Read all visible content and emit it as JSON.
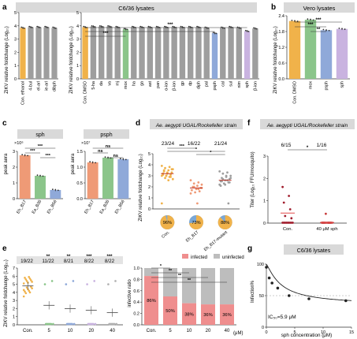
{
  "panels": {
    "a": {
      "letter": "a",
      "header": "C6/36 lysates",
      "ylabel": "ZIKV relative foldchange (Log₁₀)",
      "left": {
        "categories": [
          "Con. ethanol",
          "4-bul",
          "el-arl",
          "ie-arl",
          "dibph"
        ],
        "values": [
          3.85,
          3.9,
          3.9,
          3.9,
          3.85
        ],
        "colors": [
          "#f0b24a",
          "#9e9e9e",
          "#9e9e9e",
          "#9e9e9e",
          "#9e9e9e"
        ],
        "ylim": [
          0,
          5
        ],
        "yticks": [
          0,
          1,
          2,
          3,
          4,
          5
        ]
      },
      "right": {
        "categories": [
          "Con. DMSO",
          "5-ha",
          "da",
          "va",
          "mj",
          "mox",
          "ha",
          "ga",
          "ast",
          "pan",
          "α-ion",
          "β-ion",
          "gp",
          "dp",
          "diph",
          "pal",
          "psph",
          "cal",
          "sul",
          "nim",
          "sph",
          "β-ion"
        ],
        "values": [
          3.9,
          3.95,
          3.95,
          3.95,
          3.9,
          3.75,
          3.9,
          3.9,
          3.9,
          3.9,
          3.9,
          3.9,
          3.9,
          3.9,
          3.9,
          3.85,
          3.45,
          3.85,
          3.9,
          3.85,
          3.6,
          3.8
        ],
        "colors": [
          "#f0b24a",
          "#9e9e9e",
          "#9e9e9e",
          "#9e9e9e",
          "#9e9e9e",
          "#8bc58a",
          "#9e9e9e",
          "#9e9e9e",
          "#9e9e9e",
          "#9e9e9e",
          "#9e9e9e",
          "#9e9e9e",
          "#9e9e9e",
          "#9e9e9e",
          "#9e9e9e",
          "#9e9e9e",
          "#8fa9d9",
          "#9e9e9e",
          "#9e9e9e",
          "#9e9e9e",
          "#c9b3e0",
          "#9e9e9e"
        ],
        "ylim": [
          0,
          5
        ],
        "yticks": [
          0,
          1,
          2,
          3,
          4,
          5
        ],
        "sig": [
          "***",
          "***"
        ]
      }
    },
    "b": {
      "letter": "b",
      "header": "Vero lysates",
      "ylabel": "ZIKV relative foldchange (Log₁₀)",
      "categories": [
        "Con. DMSO",
        "mox",
        "psph",
        "sph"
      ],
      "values": [
        2.2,
        2.25,
        1.85,
        1.9
      ],
      "colors": [
        "#f0b24a",
        "#8bc58a",
        "#8fa9d9",
        "#c9b3e0"
      ],
      "ylim": [
        0,
        2.4
      ],
      "yticks": [
        0,
        0.6,
        1.2,
        1.8,
        2.4
      ],
      "sig": [
        "**",
        "***",
        "***"
      ]
    },
    "c": {
      "letter": "c",
      "left": {
        "title": "sph",
        "exponent": "×10⁶",
        "ylabel": "peak aera",
        "categories": [
          "Eh_B17",
          "Ea_B36",
          "Eh_B56"
        ],
        "values": [
          2.75,
          1.45,
          0.55
        ],
        "colors": [
          "#ef9a76",
          "#8bc58a",
          "#8fa9d9"
        ],
        "ylim": [
          0,
          3
        ],
        "yticks": [
          0,
          1,
          2,
          3
        ],
        "sig": [
          "***",
          "***",
          "***"
        ]
      },
      "right": {
        "title": "psph",
        "exponent": "×10⁷",
        "ylabel": "peak aera",
        "categories": [
          "Eh_B17",
          "Ea_B36",
          "Eh_B56"
        ],
        "values": [
          1.15,
          1.3,
          1.25
        ],
        "colors": [
          "#ef9a76",
          "#8bc58a",
          "#8fa9d9"
        ],
        "ylim": [
          0,
          1.5
        ],
        "yticks": [
          0,
          0.5,
          1.0,
          1.5
        ],
        "sig": [
          "ns",
          "ns",
          "ns"
        ]
      }
    },
    "d": {
      "letter": "d",
      "header": "Ae. aegypti UGAL/Rockefeller strain",
      "ylabel": "ZIKV relative foldchange (Log₁₀)",
      "groups": [
        "Con.",
        "Eh_B17",
        "Eh_B17-mutant"
      ],
      "means": [
        3.2,
        1.9,
        2.6
      ],
      "colors": [
        "#f0b24a",
        "#ef9a76",
        "#9e9e9e"
      ],
      "points": [
        [
          3.9,
          3.8,
          3.7,
          3.6,
          3.5,
          3.4,
          3.3,
          3.3,
          3.2,
          3.1,
          3.0,
          3.0,
          2.9,
          2.8,
          2.7,
          2.6,
          3.5,
          3.6,
          3.2,
          3.1,
          2.9,
          3.0,
          0.5
        ],
        [
          2.6,
          2.4,
          2.3,
          2.2,
          2.1,
          2.0,
          1.9,
          1.8,
          1.7,
          1.6,
          1.5,
          1.4,
          1.8,
          2.0,
          1.9,
          0.5
        ],
        [
          3.4,
          3.3,
          3.2,
          3.0,
          2.9,
          2.8,
          2.7,
          2.6,
          2.5,
          2.4,
          2.3,
          2.2,
          2.6,
          2.7,
          2.8,
          3.0,
          2.5,
          2.4,
          2.2,
          2.1,
          0.5
        ]
      ],
      "ratios": [
        "23/24",
        "16/22",
        "21/24"
      ],
      "pies": [
        0.96,
        0.73,
        0.88
      ],
      "pie_labels": [
        "96%",
        "73%",
        "88%"
      ],
      "ylim": [
        0,
        5
      ],
      "yticks": [
        0,
        1,
        2,
        3,
        4,
        5
      ],
      "sig": [
        "***",
        "*",
        "*"
      ]
    },
    "e": {
      "letter": "e",
      "ylabel": "ZIKV relative foldchange (Log₁₀)",
      "groups": [
        "Con.",
        "5",
        "10",
        "20",
        "40"
      ],
      "ratios": [
        "19/22",
        "11/22",
        "8/21",
        "8/22",
        "8/22"
      ],
      "stars": [
        "",
        "**",
        "**",
        "***",
        "***"
      ],
      "means": [
        4.8,
        2.4,
        2.0,
        1.8,
        1.5
      ],
      "colors": [
        "#f0b24a",
        "#8bc58a",
        "#8fa9d9",
        "#c9b3e0",
        "#b0b0b0"
      ],
      "ylim": [
        0,
        7
      ],
      "yticks": [
        0,
        1,
        2,
        3,
        4,
        5,
        6,
        7
      ],
      "stack": {
        "ylabel": "infective ratio",
        "legend": [
          "infected",
          "uninfected"
        ],
        "colors": [
          "#ef8e8e",
          "#bdbdbd"
        ],
        "categories": [
          "Con.",
          "5",
          "10",
          "20",
          "40"
        ],
        "infected": [
          0.86,
          0.5,
          0.38,
          0.36,
          0.36
        ],
        "labels": [
          "86%",
          "50%",
          "38%",
          "36%",
          "36%"
        ],
        "xunit": "(μM)",
        "ylim": [
          0,
          1.0
        ],
        "yticks": [
          0,
          0.2,
          0.4,
          0.6,
          0.8,
          1.0
        ],
        "sig": [
          "*",
          "**",
          "**",
          "**"
        ]
      }
    },
    "f": {
      "letter": "f",
      "header": "Ae. aegypti UGAL/Rockefeller strain",
      "ylabel": "Titer (Log₁₀ FFU/mosquito)",
      "groups": [
        "Con.",
        "40 μM sph"
      ],
      "ratios": [
        "6/15",
        "1/16"
      ],
      "means": [
        0.45,
        0.03
      ],
      "ylim": [
        0,
        3
      ],
      "yticks": [
        0,
        1,
        2,
        3
      ],
      "sig": "*"
    },
    "g": {
      "letter": "g",
      "header": "C6/36 lysates",
      "ylabel": "Infection%",
      "xlabel": "sph concentration (μM)",
      "ic50": "IC₅₀=5.9 μM",
      "x": [
        0,
        0.5,
        1,
        2,
        4,
        7.5,
        14
      ],
      "y": [
        95,
        78,
        70,
        62,
        50,
        45,
        42
      ],
      "xlim": [
        0,
        15
      ],
      "ylim": [
        0,
        100
      ],
      "xticks": [
        0,
        5,
        10,
        15
      ],
      "yticks": [
        0,
        50,
        100
      ]
    }
  },
  "chart_data": [
    {
      "type": "bar",
      "title": "C6/36 lysates",
      "ylabel": "ZIKV relative foldchange (Log₁₀)",
      "categories": [
        "Con. ethanol",
        "4-bul",
        "el-arl",
        "ie-arl",
        "dibph"
      ],
      "values": [
        3.85,
        3.9,
        3.9,
        3.9,
        3.85
      ],
      "ylim": [
        0,
        5
      ]
    },
    {
      "type": "bar",
      "title": "C6/36 lysates",
      "ylabel": "ZIKV relative foldchange (Log₁₀)",
      "categories": [
        "Con. DMSO",
        "5-ha",
        "da",
        "va",
        "mj",
        "mox",
        "ha",
        "ga",
        "ast",
        "pan",
        "α-ion",
        "β-ion",
        "gp",
        "dp",
        "diph",
        "pal",
        "psph",
        "cal",
        "sul",
        "nim",
        "sph",
        "β-ion"
      ],
      "values": [
        3.9,
        3.95,
        3.95,
        3.95,
        3.9,
        3.75,
        3.9,
        3.9,
        3.9,
        3.9,
        3.9,
        3.9,
        3.9,
        3.9,
        3.9,
        3.85,
        3.45,
        3.85,
        3.9,
        3.85,
        3.6,
        3.8
      ],
      "ylim": [
        0,
        5
      ]
    },
    {
      "type": "bar",
      "title": "Vero lysates",
      "ylabel": "ZIKV relative foldchange (Log₁₀)",
      "categories": [
        "Con. DMSO",
        "mox",
        "psph",
        "sph"
      ],
      "values": [
        2.2,
        2.25,
        1.85,
        1.9
      ],
      "ylim": [
        0,
        2.4
      ]
    },
    {
      "type": "bar",
      "title": "sph",
      "ylabel": "peak aera",
      "categories": [
        "Eh_B17",
        "Ea_B36",
        "Eh_B56"
      ],
      "values": [
        2.75,
        1.45,
        0.55
      ],
      "ylim": [
        0,
        3
      ]
    },
    {
      "type": "bar",
      "title": "psph",
      "ylabel": "peak aera",
      "categories": [
        "Eh_B17",
        "Ea_B36",
        "Eh_B56"
      ],
      "values": [
        1.15,
        1.3,
        1.25
      ],
      "ylim": [
        0,
        1.5
      ]
    },
    {
      "type": "scatter",
      "title": "Ae. aegypti UGAL/Rockefeller strain",
      "ylabel": "ZIKV relative foldchange (Log₁₀)",
      "categories": [
        "Con.",
        "Eh_B17",
        "Eh_B17-mutant"
      ],
      "means": [
        3.2,
        1.9,
        2.6
      ],
      "infected_ratio": [
        "23/24",
        "16/22",
        "21/24"
      ],
      "infected_pct": [
        96,
        73,
        88
      ]
    },
    {
      "type": "scatter",
      "ylabel": "ZIKV relative foldchange (Log₁₀)",
      "categories": [
        "Con.",
        "5",
        "10",
        "20",
        "40"
      ],
      "means": [
        4.8,
        2.4,
        2.0,
        1.8,
        1.5
      ],
      "infected_ratio": [
        "19/22",
        "11/22",
        "8/21",
        "8/22",
        "8/22"
      ]
    },
    {
      "type": "bar",
      "ylabel": "infective ratio",
      "categories": [
        "Con.",
        "5",
        "10",
        "20",
        "40"
      ],
      "series": [
        {
          "name": "infected",
          "values": [
            0.86,
            0.5,
            0.38,
            0.36,
            0.36
          ]
        },
        {
          "name": "uninfected",
          "values": [
            0.14,
            0.5,
            0.62,
            0.64,
            0.64
          ]
        }
      ],
      "ylim": [
        0,
        1
      ]
    },
    {
      "type": "scatter",
      "title": "Ae. aegypti UGAL/Rockefeller strain",
      "ylabel": "Titer (Log₁₀ FFU/mosquito)",
      "categories": [
        "Con.",
        "40 μM sph"
      ],
      "means": [
        0.45,
        0.03
      ],
      "infected_ratio": [
        "6/15",
        "1/16"
      ],
      "ylim": [
        0,
        3
      ]
    },
    {
      "type": "line",
      "title": "C6/36 lysates",
      "xlabel": "sph concentration (μM)",
      "ylabel": "Infection%",
      "x": [
        0,
        0.5,
        1,
        2,
        4,
        7.5,
        14
      ],
      "y": [
        95,
        78,
        70,
        62,
        50,
        45,
        42
      ],
      "xlim": [
        0,
        15
      ],
      "ylim": [
        0,
        100
      ]
    }
  ]
}
